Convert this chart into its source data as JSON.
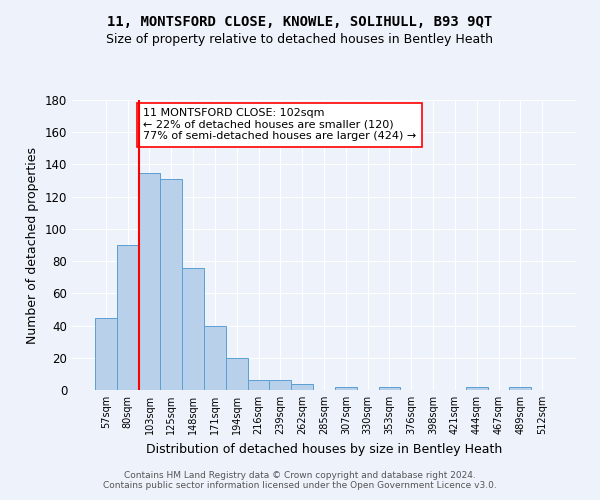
{
  "title": "11, MONTSFORD CLOSE, KNOWLE, SOLIHULL, B93 9QT",
  "subtitle": "Size of property relative to detached houses in Bentley Heath",
  "xlabel": "Distribution of detached houses by size in Bentley Heath",
  "ylabel": "Number of detached properties",
  "footer_line1": "Contains HM Land Registry data © Crown copyright and database right 2024.",
  "footer_line2": "Contains public sector information licensed under the Open Government Licence v3.0.",
  "bin_labels": [
    "57sqm",
    "80sqm",
    "103sqm",
    "125sqm",
    "148sqm",
    "171sqm",
    "194sqm",
    "216sqm",
    "239sqm",
    "262sqm",
    "285sqm",
    "307sqm",
    "330sqm",
    "353sqm",
    "376sqm",
    "398sqm",
    "421sqm",
    "444sqm",
    "467sqm",
    "489sqm",
    "512sqm"
  ],
  "bar_values": [
    45,
    90,
    135,
    131,
    76,
    40,
    20,
    6,
    6,
    4,
    0,
    2,
    0,
    2,
    0,
    0,
    0,
    2,
    0,
    2,
    0
  ],
  "bar_color": "#b8d0ea",
  "bar_edge_color": "#5a9fd4",
  "vline_color": "red",
  "vline_x_index": 2,
  "annotation_text": "11 MONTSFORD CLOSE: 102sqm\n← 22% of detached houses are smaller (120)\n77% of semi-detached houses are larger (424) →",
  "annotation_box_color": "white",
  "annotation_box_edge_color": "red",
  "ylim": [
    0,
    180
  ],
  "yticks": [
    0,
    20,
    40,
    60,
    80,
    100,
    120,
    140,
    160,
    180
  ],
  "bg_color": "#eef2fb",
  "grid_color": "white",
  "title_fontsize": 10,
  "subtitle_fontsize": 9,
  "annotation_fontsize": 8,
  "footer_fontsize": 6.5,
  "ylabel_fontsize": 9,
  "xlabel_fontsize": 9
}
